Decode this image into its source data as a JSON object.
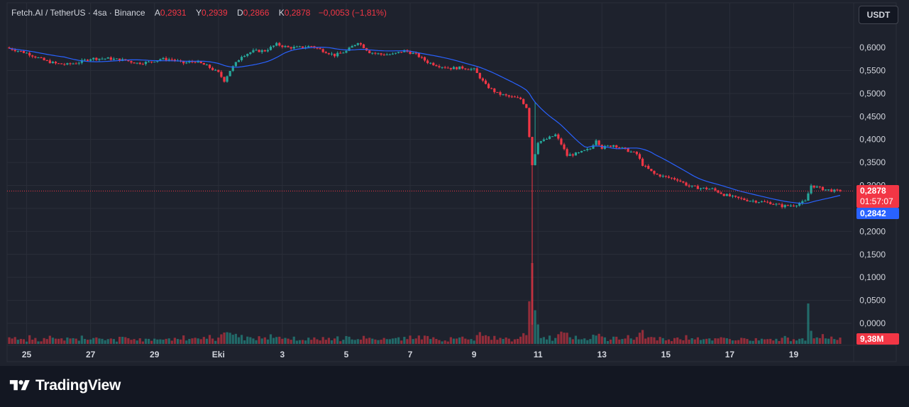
{
  "legend": {
    "symbol": "Fetch.AI / TetherUS · 4sa · Binance",
    "open_label": "A",
    "open": "0,2931",
    "high_label": "Y",
    "high": "0,2939",
    "low_label": "D",
    "low": "0,2866",
    "close_label": "K",
    "close": "0,2878",
    "change": "−0,0053 (−1,81%)"
  },
  "currency_button": "USDT",
  "tags": {
    "last_price": "0,2878",
    "countdown": "01:57:07",
    "ma_value": "0,2842",
    "volume": "9,38M"
  },
  "branding": {
    "name": "TradingView"
  },
  "colors": {
    "up": "#26a69a",
    "down": "#f23645",
    "ma_line": "#2962ff",
    "background": "#1e222d",
    "grid": "#2a2e39"
  },
  "chart_data": {
    "type": "candlestick",
    "ylim": [
      -0.045,
      0.64
    ],
    "y_ticks": [
      "0,6000",
      "0,5500",
      "0,5000",
      "0,4500",
      "0,4000",
      "0,3500",
      "0,3000",
      "0,2500",
      "0,2000",
      "0,1500",
      "0,1000",
      "0,0500",
      "0,0000"
    ],
    "y_tick_values": [
      0.6,
      0.55,
      0.5,
      0.45,
      0.4,
      0.35,
      0.3,
      0.25,
      0.2,
      0.15,
      0.1,
      0.05,
      0.0
    ],
    "x_labels": [
      "25",
      "27",
      "29",
      "Eki",
      "3",
      "5",
      "7",
      "9",
      "11",
      "13",
      "15",
      "17",
      "19"
    ],
    "x_label_index": [
      6,
      28,
      50,
      72,
      94,
      116,
      138,
      160,
      182,
      204,
      226,
      248,
      270
    ],
    "last_price": 0.2878,
    "ma_last": 0.2842,
    "close_path": [
      [
        0,
        0.598
      ],
      [
        6,
        0.588
      ],
      [
        12,
        0.572
      ],
      [
        16,
        0.565
      ],
      [
        20,
        0.563
      ],
      [
        24,
        0.568
      ],
      [
        28,
        0.576
      ],
      [
        34,
        0.576
      ],
      [
        40,
        0.572
      ],
      [
        44,
        0.566
      ],
      [
        48,
        0.568
      ],
      [
        52,
        0.575
      ],
      [
        56,
        0.574
      ],
      [
        60,
        0.566
      ],
      [
        64,
        0.57
      ],
      [
        68,
        0.56
      ],
      [
        72,
        0.545
      ],
      [
        74,
        0.528
      ],
      [
        76,
        0.55
      ],
      [
        80,
        0.582
      ],
      [
        84,
        0.592
      ],
      [
        88,
        0.593
      ],
      [
        92,
        0.607
      ],
      [
        96,
        0.6
      ],
      [
        100,
        0.6
      ],
      [
        104,
        0.603
      ],
      [
        108,
        0.593
      ],
      [
        112,
        0.583
      ],
      [
        116,
        0.592
      ],
      [
        120,
        0.612
      ],
      [
        124,
        0.59
      ],
      [
        128,
        0.585
      ],
      [
        132,
        0.585
      ],
      [
        136,
        0.593
      ],
      [
        140,
        0.585
      ],
      [
        144,
        0.568
      ],
      [
        148,
        0.56
      ],
      [
        152,
        0.555
      ],
      [
        156,
        0.556
      ],
      [
        160,
        0.552
      ],
      [
        164,
        0.518
      ],
      [
        168,
        0.5
      ],
      [
        172,
        0.493
      ],
      [
        176,
        0.488
      ],
      [
        178,
        0.47
      ],
      [
        180,
        0.345
      ],
      [
        182,
        0.395
      ],
      [
        184,
        0.398
      ],
      [
        188,
        0.41
      ],
      [
        190,
        0.39
      ],
      [
        192,
        0.365
      ],
      [
        196,
        0.37
      ],
      [
        200,
        0.38
      ],
      [
        202,
        0.4
      ],
      [
        204,
        0.382
      ],
      [
        208,
        0.388
      ],
      [
        212,
        0.378
      ],
      [
        216,
        0.368
      ],
      [
        218,
        0.345
      ],
      [
        222,
        0.325
      ],
      [
        226,
        0.318
      ],
      [
        230,
        0.313
      ],
      [
        234,
        0.298
      ],
      [
        238,
        0.294
      ],
      [
        242,
        0.292
      ],
      [
        246,
        0.28
      ],
      [
        250,
        0.273
      ],
      [
        254,
        0.268
      ],
      [
        258,
        0.265
      ],
      [
        262,
        0.262
      ],
      [
        266,
        0.255
      ],
      [
        270,
        0.257
      ],
      [
        274,
        0.265
      ],
      [
        276,
        0.3
      ],
      [
        280,
        0.292
      ],
      [
        284,
        0.288
      ],
      [
        286,
        0.2878
      ]
    ],
    "spikes": [
      {
        "index": 180,
        "low": -0.003
      },
      {
        "index": 181,
        "high": 0.482
      }
    ],
    "volume_ticks": 287,
    "volume_max_units": 1.0
  }
}
